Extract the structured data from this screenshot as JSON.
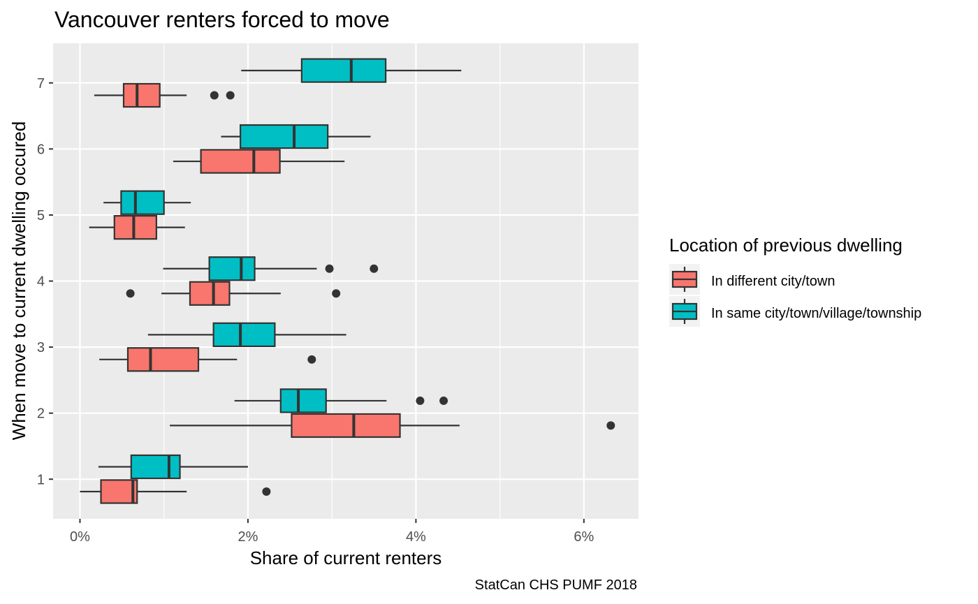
{
  "chart_data": {
    "type": "boxplot",
    "orientation": "horizontal",
    "title": "Vancouver renters forced to move",
    "xlabel": "Share of current renters",
    "ylabel": "When move to current dwelling occured",
    "caption": "StatCan CHS PUMF 2018",
    "xlim": [
      -0.32,
      6.65
    ],
    "x_ticks": [
      0,
      2,
      4,
      6
    ],
    "x_tick_labels": [
      "0%",
      "2%",
      "4%",
      "6%"
    ],
    "y_categories": [
      "1",
      "2",
      "3",
      "4",
      "5",
      "6",
      "7"
    ],
    "grid": true,
    "legend": {
      "title": "Location of previous dwelling",
      "position": "right"
    },
    "series": [
      {
        "name": "In different city/town",
        "color": "#F8766D",
        "boxes": [
          {
            "category": "1",
            "whisker_low": 0.0,
            "q1": 0.25,
            "median": 0.63,
            "q3": 0.68,
            "whisker_high": 1.27,
            "outliers": [
              2.22
            ]
          },
          {
            "category": "2",
            "whisker_low": 1.07,
            "q1": 2.52,
            "median": 3.26,
            "q3": 3.81,
            "whisker_high": 4.52,
            "outliers": [
              6.32
            ]
          },
          {
            "category": "3",
            "whisker_low": 0.23,
            "q1": 0.57,
            "median": 0.84,
            "q3": 1.41,
            "whisker_high": 1.87,
            "outliers": [
              2.76
            ]
          },
          {
            "category": "4",
            "whisker_low": 0.97,
            "q1": 1.31,
            "median": 1.59,
            "q3": 1.78,
            "whisker_high": 2.39,
            "outliers": [
              0.6,
              3.05
            ]
          },
          {
            "category": "5",
            "whisker_low": 0.11,
            "q1": 0.41,
            "median": 0.64,
            "q3": 0.91,
            "whisker_high": 1.25,
            "outliers": []
          },
          {
            "category": "6",
            "whisker_low": 1.11,
            "q1": 1.44,
            "median": 2.07,
            "q3": 2.38,
            "whisker_high": 3.15,
            "outliers": []
          },
          {
            "category": "7",
            "whisker_low": 0.17,
            "q1": 0.52,
            "median": 0.68,
            "q3": 0.95,
            "whisker_high": 1.27,
            "outliers": [
              1.6,
              1.79
            ]
          }
        ]
      },
      {
        "name": "In same city/town/village/township",
        "color": "#00BFC4",
        "boxes": [
          {
            "category": "1",
            "whisker_low": 0.22,
            "q1": 0.61,
            "median": 1.06,
            "q3": 1.19,
            "whisker_high": 2.0,
            "outliers": []
          },
          {
            "category": "2",
            "whisker_low": 1.84,
            "q1": 2.39,
            "median": 2.6,
            "q3": 2.93,
            "whisker_high": 3.65,
            "outliers": [
              4.05,
              4.33
            ]
          },
          {
            "category": "3",
            "whisker_low": 0.81,
            "q1": 1.59,
            "median": 1.91,
            "q3": 2.32,
            "whisker_high": 3.17,
            "outliers": []
          },
          {
            "category": "4",
            "whisker_low": 0.99,
            "q1": 1.54,
            "median": 1.92,
            "q3": 2.08,
            "whisker_high": 2.82,
            "outliers": [
              2.97,
              3.5
            ]
          },
          {
            "category": "5",
            "whisker_low": 0.28,
            "q1": 0.49,
            "median": 0.66,
            "q3": 1.0,
            "whisker_high": 1.32,
            "outliers": []
          },
          {
            "category": "6",
            "whisker_low": 1.68,
            "q1": 1.91,
            "median": 2.55,
            "q3": 2.95,
            "whisker_high": 3.46,
            "outliers": []
          },
          {
            "category": "7",
            "whisker_low": 1.92,
            "q1": 2.64,
            "median": 3.23,
            "q3": 3.64,
            "whisker_high": 4.54,
            "outliers": []
          }
        ]
      }
    ]
  }
}
